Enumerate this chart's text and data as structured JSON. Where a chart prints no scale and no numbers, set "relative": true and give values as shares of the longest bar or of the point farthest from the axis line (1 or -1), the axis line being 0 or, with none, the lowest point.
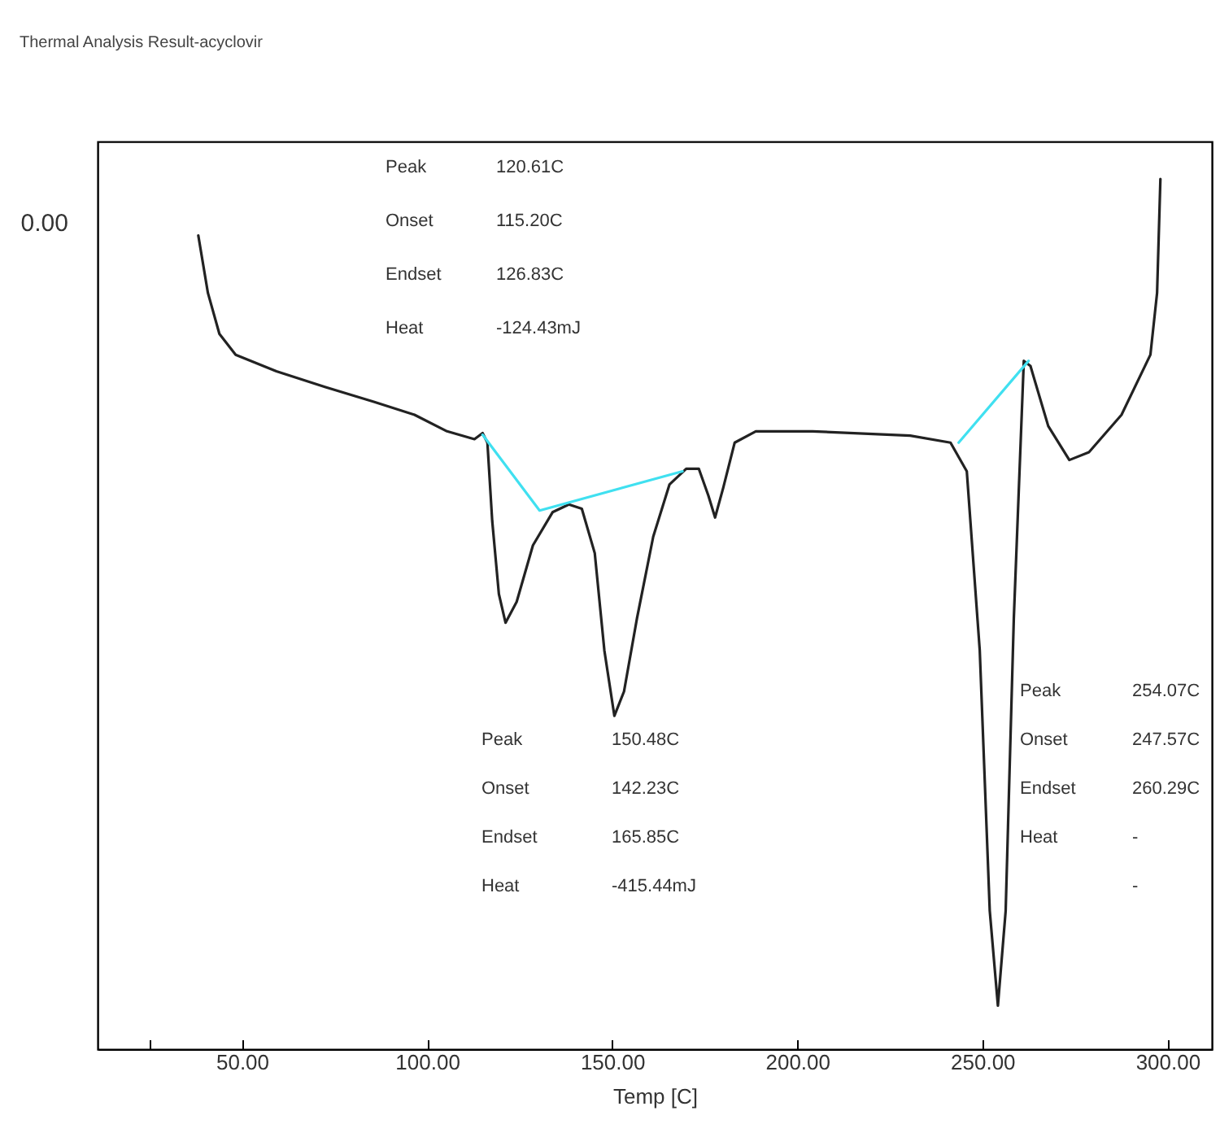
{
  "chart_data": {
    "type": "line",
    "title": "Thermal Analysis Result-acyclovir",
    "xlabel": "Temp [C]",
    "relative": true,
    "xlim": [
      11,
      312
    ],
    "xticks": [
      {
        "value": 25,
        "label": null
      },
      {
        "value": 50,
        "label": "50.00"
      },
      {
        "value": 100,
        "label": "100.00"
      },
      {
        "value": 150,
        "label": "150.00"
      },
      {
        "value": 200,
        "label": "200.00"
      },
      {
        "value": 250,
        "label": "250.00"
      },
      {
        "value": 300,
        "label": "300.00"
      }
    ],
    "grid": false,
    "marker": "none",
    "line_style": "solid",
    "series": [
      {
        "color": "#222222",
        "x": [
          38.2,
          40.8,
          43.9,
          48.3,
          59.3,
          72.4,
          85.6,
          96.6,
          105.4,
          112.8,
          115.0,
          116.3,
          117.6,
          119.4,
          121.2,
          124.2,
          128.6,
          133.9,
          138.3,
          141.8,
          145.3,
          147.9,
          150.6,
          153.2,
          156.7,
          161.1,
          165.5,
          170.0,
          173.4,
          176.0,
          177.8,
          180.0,
          183.1,
          188.8,
          204.1,
          230.5,
          241.4,
          245.8,
          249.3,
          252.0,
          254.2,
          256.3,
          258.5,
          261.2,
          263.0,
          267.8,
          273.5,
          278.8,
          287.6,
          295.4,
          297.2,
          298.1
        ],
        "values": [
          0.935,
          0.869,
          0.822,
          0.798,
          0.779,
          0.761,
          0.744,
          0.729,
          0.71,
          0.701,
          0.708,
          0.697,
          0.607,
          0.523,
          0.49,
          0.514,
          0.579,
          0.617,
          0.626,
          0.621,
          0.57,
          0.458,
          0.383,
          0.411,
          0.495,
          0.589,
          0.649,
          0.667,
          0.667,
          0.636,
          0.611,
          0.645,
          0.697,
          0.71,
          0.71,
          0.705,
          0.697,
          0.664,
          0.458,
          0.159,
          0.05,
          0.159,
          0.495,
          0.791,
          0.785,
          0.716,
          0.677,
          0.686,
          0.729,
          0.798,
          0.869,
          1.0
        ]
      },
      {
        "color": "#40e0f0",
        "x": [
          115.0,
          130.4,
          169.0,
          200.0,
          243.6,
          262.5
        ],
        "values": [
          0.706,
          0.619,
          0.664,
          null,
          0.697,
          0.791
        ]
      }
    ],
    "annotations": [
      "Peak\t120.61C\nOnset\t115.20C\nEndset\t126.83C\nHeat\t-124.43mJ",
      "Peak\t150.48C\nOnset\t142.23C\nEndset\t165.85C\nHeat\t-415.44mJ",
      "Peak\t254.07C\nOnset\t247.57C\nEndset\t260.29C\nHeat\t-\n\t-",
      "0.00"
    ]
  }
}
